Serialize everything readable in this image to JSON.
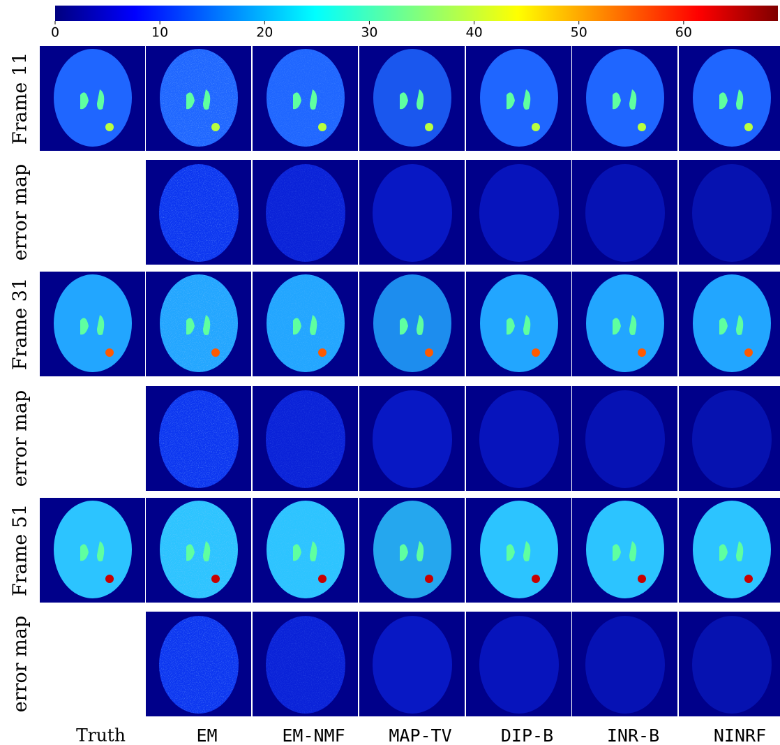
{
  "colorbar": {
    "range": [
      0,
      69
    ],
    "ticks": [
      0,
      10,
      20,
      30,
      40,
      50,
      60
    ]
  },
  "rows": [
    "Frame 11",
    "error map",
    "Frame 31",
    "error map",
    "Frame 51",
    "error map"
  ],
  "columns": [
    "Truth",
    "EM",
    "EM-NMF",
    "MAP-TV",
    "DIP-B",
    "INR-B",
    "NINRF"
  ]
}
